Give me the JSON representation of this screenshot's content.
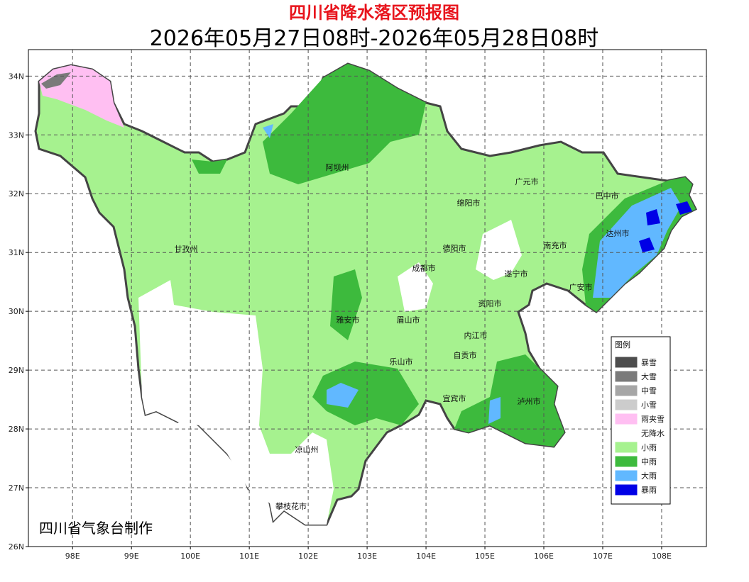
{
  "header": {
    "title": "四川省降水落区预报图",
    "subtitle": "2026年05月27日08时-2026年05月28日08时"
  },
  "map": {
    "lonlim": [
      97.25,
      108.76
    ],
    "latlim": [
      26,
      34.45
    ],
    "xticks": [
      {
        "value": 98,
        "label": "98E"
      },
      {
        "value": 99,
        "label": "99E"
      },
      {
        "value": 100,
        "label": "100E"
      },
      {
        "value": 101,
        "label": "101E"
      },
      {
        "value": 102,
        "label": "102E"
      },
      {
        "value": 103,
        "label": "103E"
      },
      {
        "value": 104,
        "label": "104E"
      },
      {
        "value": 105,
        "label": "105E"
      },
      {
        "value": 106,
        "label": "106E"
      },
      {
        "value": 107,
        "label": "107E"
      },
      {
        "value": 108,
        "label": "108E"
      }
    ],
    "yticks": [
      {
        "value": 26,
        "label": "26N"
      },
      {
        "value": 27,
        "label": "27N"
      },
      {
        "value": 28,
        "label": "28N"
      },
      {
        "value": 29,
        "label": "29N"
      },
      {
        "value": 30,
        "label": "30N"
      },
      {
        "value": 31,
        "label": "31N"
      },
      {
        "value": 32,
        "label": "32N"
      },
      {
        "value": 33,
        "label": "33N"
      },
      {
        "value": 34,
        "label": "34N"
      }
    ],
    "grid": true,
    "cities": [
      "阿坝州",
      "广元市",
      "巴中市",
      "绵阳市",
      "达州市",
      "甘孜州",
      "德阳市",
      "南充市",
      "成都市",
      "遂宁市",
      "广安市",
      "资阳市",
      "雅安市",
      "眉山市",
      "内江市",
      "乐山市",
      "自贡市",
      "宜宾市",
      "泸州市",
      "凉山州",
      "攀枝花市"
    ]
  },
  "legend": {
    "title": "图例",
    "items": [
      {
        "name": "暴雪",
        "color": "#4d4d4d"
      },
      {
        "name": "大雪",
        "color": "#7a7a7a"
      },
      {
        "name": "中雪",
        "color": "#a6a6a6"
      },
      {
        "name": "小雪",
        "color": "#cccccc"
      },
      {
        "name": "雨夹雪",
        "color": "#ffbff2"
      },
      {
        "name": "无降水",
        "color": "#ffffff"
      },
      {
        "name": "小雨",
        "color": "#a6f28f"
      },
      {
        "name": "中雨",
        "color": "#3dba3d"
      },
      {
        "name": "大雨",
        "color": "#61b8ff"
      },
      {
        "name": "暴雨",
        "color": "#0000e6"
      }
    ]
  },
  "footer": {
    "credit": "四川省气象台制作"
  }
}
